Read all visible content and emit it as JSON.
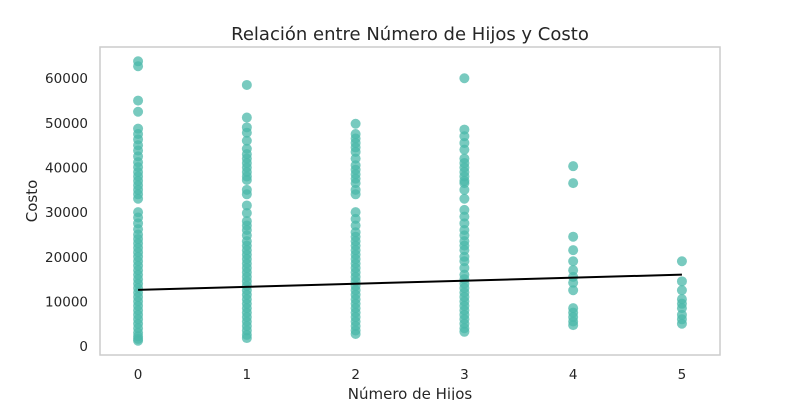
{
  "chart_data": {
    "type": "scatter",
    "title": "Relación entre Número de Hijos y Costo",
    "xlabel": "Número de Hijos",
    "ylabel": "Costo",
    "x_ticks": [
      "0",
      "1",
      "2",
      "3",
      "4",
      "5"
    ],
    "y_ticks": [
      "0",
      "10000",
      "20000",
      "30000",
      "40000",
      "50000",
      "60000"
    ],
    "xlim": [
      -0.35,
      5.35
    ],
    "ylim": [
      -2000,
      67000
    ],
    "grid": false,
    "marker_color": "#4bb8a9",
    "marker_opacity": 0.75,
    "regression_color": "#000000",
    "regression_line": {
      "intercept": 12600,
      "slope": 680,
      "x_range": [
        0,
        5
      ]
    },
    "points": [
      {
        "x": 0,
        "y": 63800
      },
      {
        "x": 0,
        "y": 62700
      },
      {
        "x": 0,
        "y": 55000
      },
      {
        "x": 0,
        "y": 52500
      },
      {
        "x": 0,
        "y": 48700
      },
      {
        "x": 0,
        "y": 47500
      },
      {
        "x": 0,
        "y": 46300
      },
      {
        "x": 0,
        "y": 45000
      },
      {
        "x": 0,
        "y": 43800
      },
      {
        "x": 0,
        "y": 42500
      },
      {
        "x": 0,
        "y": 41200
      },
      {
        "x": 0,
        "y": 40100
      },
      {
        "x": 0,
        "y": 39000
      },
      {
        "x": 0,
        "y": 38000
      },
      {
        "x": 0,
        "y": 37000
      },
      {
        "x": 0,
        "y": 36000
      },
      {
        "x": 0,
        "y": 35000
      },
      {
        "x": 0,
        "y": 34000
      },
      {
        "x": 0,
        "y": 33000
      },
      {
        "x": 0,
        "y": 30000
      },
      {
        "x": 0,
        "y": 28800
      },
      {
        "x": 0,
        "y": 27500
      },
      {
        "x": 0,
        "y": 26200
      },
      {
        "x": 0,
        "y": 25000
      },
      {
        "x": 0,
        "y": 24000
      },
      {
        "x": 0,
        "y": 23000
      },
      {
        "x": 0,
        "y": 22000
      },
      {
        "x": 0,
        "y": 21000
      },
      {
        "x": 0,
        "y": 20000
      },
      {
        "x": 0,
        "y": 19000
      },
      {
        "x": 0,
        "y": 18000
      },
      {
        "x": 0,
        "y": 17000
      },
      {
        "x": 0,
        "y": 16000
      },
      {
        "x": 0,
        "y": 15000
      },
      {
        "x": 0,
        "y": 14000
      },
      {
        "x": 0,
        "y": 13000
      },
      {
        "x": 0,
        "y": 12000
      },
      {
        "x": 0,
        "y": 11000
      },
      {
        "x": 0,
        "y": 10000
      },
      {
        "x": 0,
        "y": 9000
      },
      {
        "x": 0,
        "y": 8000
      },
      {
        "x": 0,
        "y": 7000
      },
      {
        "x": 0,
        "y": 6000
      },
      {
        "x": 0,
        "y": 5000
      },
      {
        "x": 0,
        "y": 4000
      },
      {
        "x": 0,
        "y": 3000
      },
      {
        "x": 0,
        "y": 2200
      },
      {
        "x": 0,
        "y": 1600
      },
      {
        "x": 0,
        "y": 1200
      },
      {
        "x": 1,
        "y": 58500
      },
      {
        "x": 1,
        "y": 51200
      },
      {
        "x": 1,
        "y": 49000
      },
      {
        "x": 1,
        "y": 47800
      },
      {
        "x": 1,
        "y": 46000
      },
      {
        "x": 1,
        "y": 44200
      },
      {
        "x": 1,
        "y": 43000
      },
      {
        "x": 1,
        "y": 42000
      },
      {
        "x": 1,
        "y": 41000
      },
      {
        "x": 1,
        "y": 40000
      },
      {
        "x": 1,
        "y": 39000
      },
      {
        "x": 1,
        "y": 38000
      },
      {
        "x": 1,
        "y": 37200
      },
      {
        "x": 1,
        "y": 35000
      },
      {
        "x": 1,
        "y": 34000
      },
      {
        "x": 1,
        "y": 31500
      },
      {
        "x": 1,
        "y": 29800
      },
      {
        "x": 1,
        "y": 28000
      },
      {
        "x": 1,
        "y": 27000
      },
      {
        "x": 1,
        "y": 26000
      },
      {
        "x": 1,
        "y": 24800
      },
      {
        "x": 1,
        "y": 23500
      },
      {
        "x": 1,
        "y": 22500
      },
      {
        "x": 1,
        "y": 21500
      },
      {
        "x": 1,
        "y": 20500
      },
      {
        "x": 1,
        "y": 19500
      },
      {
        "x": 1,
        "y": 18500
      },
      {
        "x": 1,
        "y": 17500
      },
      {
        "x": 1,
        "y": 16500
      },
      {
        "x": 1,
        "y": 15500
      },
      {
        "x": 1,
        "y": 14500
      },
      {
        "x": 1,
        "y": 13500
      },
      {
        "x": 1,
        "y": 12500
      },
      {
        "x": 1,
        "y": 11500
      },
      {
        "x": 1,
        "y": 10500
      },
      {
        "x": 1,
        "y": 9500
      },
      {
        "x": 1,
        "y": 8500
      },
      {
        "x": 1,
        "y": 7500
      },
      {
        "x": 1,
        "y": 6500
      },
      {
        "x": 1,
        "y": 5500
      },
      {
        "x": 1,
        "y": 4500
      },
      {
        "x": 1,
        "y": 3500
      },
      {
        "x": 1,
        "y": 2500
      },
      {
        "x": 1,
        "y": 1800
      },
      {
        "x": 2,
        "y": 49800
      },
      {
        "x": 2,
        "y": 47500
      },
      {
        "x": 2,
        "y": 46500
      },
      {
        "x": 2,
        "y": 45500
      },
      {
        "x": 2,
        "y": 44500
      },
      {
        "x": 2,
        "y": 43500
      },
      {
        "x": 2,
        "y": 42000
      },
      {
        "x": 2,
        "y": 40500
      },
      {
        "x": 2,
        "y": 39500
      },
      {
        "x": 2,
        "y": 38500
      },
      {
        "x": 2,
        "y": 37500
      },
      {
        "x": 2,
        "y": 36500
      },
      {
        "x": 2,
        "y": 35000
      },
      {
        "x": 2,
        "y": 34000
      },
      {
        "x": 2,
        "y": 30000
      },
      {
        "x": 2,
        "y": 28500
      },
      {
        "x": 2,
        "y": 27000
      },
      {
        "x": 2,
        "y": 25500
      },
      {
        "x": 2,
        "y": 24500
      },
      {
        "x": 2,
        "y": 23500
      },
      {
        "x": 2,
        "y": 22500
      },
      {
        "x": 2,
        "y": 21500
      },
      {
        "x": 2,
        "y": 20500
      },
      {
        "x": 2,
        "y": 19500
      },
      {
        "x": 2,
        "y": 18500
      },
      {
        "x": 2,
        "y": 17500
      },
      {
        "x": 2,
        "y": 16500
      },
      {
        "x": 2,
        "y": 15500
      },
      {
        "x": 2,
        "y": 14500
      },
      {
        "x": 2,
        "y": 13500
      },
      {
        "x": 2,
        "y": 12500
      },
      {
        "x": 2,
        "y": 11500
      },
      {
        "x": 2,
        "y": 10500
      },
      {
        "x": 2,
        "y": 9500
      },
      {
        "x": 2,
        "y": 8500
      },
      {
        "x": 2,
        "y": 7500
      },
      {
        "x": 2,
        "y": 6500
      },
      {
        "x": 2,
        "y": 5500
      },
      {
        "x": 2,
        "y": 4500
      },
      {
        "x": 2,
        "y": 3500
      },
      {
        "x": 2,
        "y": 2700
      },
      {
        "x": 3,
        "y": 60000
      },
      {
        "x": 3,
        "y": 48500
      },
      {
        "x": 3,
        "y": 47000
      },
      {
        "x": 3,
        "y": 45500
      },
      {
        "x": 3,
        "y": 44000
      },
      {
        "x": 3,
        "y": 42000
      },
      {
        "x": 3,
        "y": 41000
      },
      {
        "x": 3,
        "y": 40000
      },
      {
        "x": 3,
        "y": 39000
      },
      {
        "x": 3,
        "y": 38000
      },
      {
        "x": 3,
        "y": 37000
      },
      {
        "x": 3,
        "y": 36500
      },
      {
        "x": 3,
        "y": 35000
      },
      {
        "x": 3,
        "y": 33000
      },
      {
        "x": 3,
        "y": 30500
      },
      {
        "x": 3,
        "y": 29000
      },
      {
        "x": 3,
        "y": 27500
      },
      {
        "x": 3,
        "y": 26000
      },
      {
        "x": 3,
        "y": 24800
      },
      {
        "x": 3,
        "y": 23500
      },
      {
        "x": 3,
        "y": 22500
      },
      {
        "x": 3,
        "y": 21500
      },
      {
        "x": 3,
        "y": 20000
      },
      {
        "x": 3,
        "y": 19000
      },
      {
        "x": 3,
        "y": 17500
      },
      {
        "x": 3,
        "y": 16000
      },
      {
        "x": 3,
        "y": 15000
      },
      {
        "x": 3,
        "y": 14000
      },
      {
        "x": 3,
        "y": 13000
      },
      {
        "x": 3,
        "y": 12000
      },
      {
        "x": 3,
        "y": 11000
      },
      {
        "x": 3,
        "y": 10000
      },
      {
        "x": 3,
        "y": 9000
      },
      {
        "x": 3,
        "y": 8000
      },
      {
        "x": 3,
        "y": 7000
      },
      {
        "x": 3,
        "y": 6000
      },
      {
        "x": 3,
        "y": 5000
      },
      {
        "x": 3,
        "y": 4000
      },
      {
        "x": 3,
        "y": 3200
      },
      {
        "x": 4,
        "y": 40300
      },
      {
        "x": 4,
        "y": 36500
      },
      {
        "x": 4,
        "y": 24500
      },
      {
        "x": 4,
        "y": 21500
      },
      {
        "x": 4,
        "y": 19000
      },
      {
        "x": 4,
        "y": 17000
      },
      {
        "x": 4,
        "y": 15500
      },
      {
        "x": 4,
        "y": 14200
      },
      {
        "x": 4,
        "y": 12500
      },
      {
        "x": 4,
        "y": 8500
      },
      {
        "x": 4,
        "y": 7500
      },
      {
        "x": 4,
        "y": 6500
      },
      {
        "x": 4,
        "y": 5500
      },
      {
        "x": 4,
        "y": 4700
      },
      {
        "x": 5,
        "y": 19000
      },
      {
        "x": 5,
        "y": 14500
      },
      {
        "x": 5,
        "y": 12500
      },
      {
        "x": 5,
        "y": 10500
      },
      {
        "x": 5,
        "y": 9500
      },
      {
        "x": 5,
        "y": 8500
      },
      {
        "x": 5,
        "y": 7000
      },
      {
        "x": 5,
        "y": 6000
      },
      {
        "x": 5,
        "y": 5000
      }
    ]
  }
}
